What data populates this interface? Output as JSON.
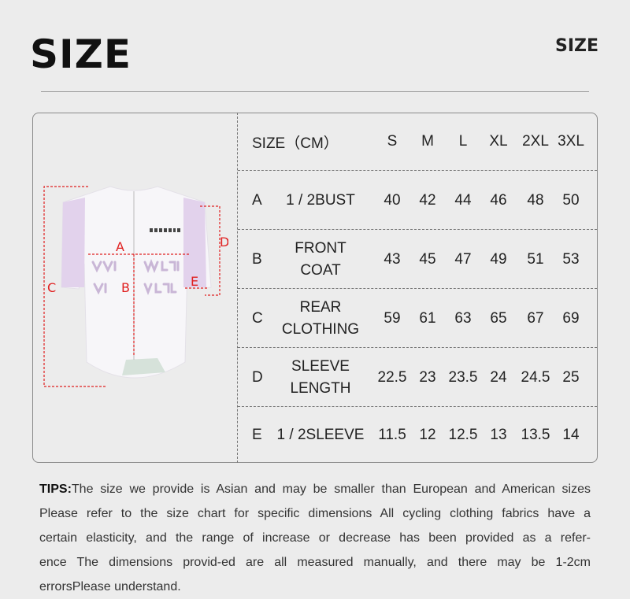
{
  "title": "SIZE",
  "corner_title": "SIZE",
  "diagram": {
    "labels": {
      "A": "A",
      "B": "B",
      "C": "C",
      "D": "D",
      "E": "E"
    },
    "logo_text": "YKYWBIKE",
    "marker_color": "#e02020",
    "sleeve_color": "#e2d2ec"
  },
  "table": {
    "header": {
      "label": "SIZE（CM）",
      "sizes": [
        "S",
        "M",
        "L",
        "XL",
        "2XL",
        "3XL"
      ]
    },
    "rows": [
      {
        "letter": "A",
        "name": "1 / 2BUST",
        "values": [
          "40",
          "42",
          "44",
          "46",
          "48",
          "50"
        ]
      },
      {
        "letter": "B",
        "name": "FRONT\nCOAT",
        "values": [
          "43",
          "45",
          "47",
          "49",
          "51",
          "53"
        ]
      },
      {
        "letter": "C",
        "name": "REAR\nCLOTHING",
        "values": [
          "59",
          "61",
          "63",
          "65",
          "67",
          "69"
        ]
      },
      {
        "letter": "D",
        "name": "SLEEVE\nLENGTH",
        "values": [
          "22.5",
          "23",
          "23.5",
          "24",
          "24.5",
          "25"
        ]
      },
      {
        "letter": "E",
        "name": "1 / 2SLEEVE",
        "values": [
          "11.5",
          "12",
          "12.5",
          "13",
          "13.5",
          "14"
        ]
      }
    ]
  },
  "tips": {
    "label": "TIPS:",
    "lines": [
      "The size we provide is Asian and may be smaller than European and American sizes",
      "Please refer to the size chart for specific dimensions All cycling clothing fabrics have a",
      "certain elasticity, and the range of increase or decrease has been provided as a refer-",
      "ence The dimensions provid-ed are all measured manually, and there may be 1-2cm",
      "errorsPlease understand."
    ]
  }
}
